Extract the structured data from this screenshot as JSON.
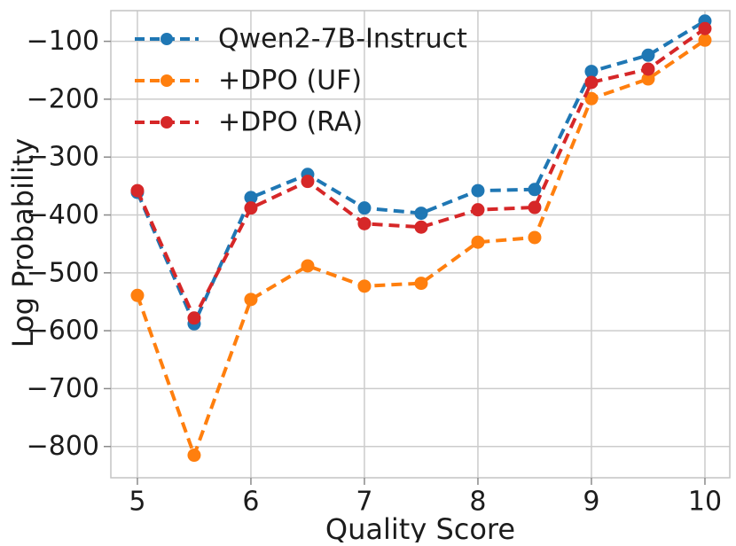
{
  "figure": {
    "xlabel": "Quality Score",
    "ylabel": "Log Probability"
  },
  "chart_data": {
    "type": "line",
    "x": [
      5,
      5.5,
      6,
      6.5,
      7,
      7.5,
      8,
      8.5,
      9,
      9.5,
      10
    ],
    "series": [
      {
        "name": "Qwen2-7B-Instruct",
        "color": "#1f77b4",
        "values": [
          -361,
          -588,
          -370,
          -330,
          -388,
          -397,
          -358,
          -356,
          -152,
          -124,
          -65
        ]
      },
      {
        "name": "+DPO (UF)",
        "color": "#ff7f0e",
        "values": [
          -539,
          -815,
          -546,
          -488,
          -523,
          -518,
          -447,
          -439,
          -199,
          -165,
          -98
        ]
      },
      {
        "name": "+DPO (RA)",
        "color": "#d62728",
        "values": [
          -358,
          -578,
          -388,
          -342,
          -415,
          -421,
          -391,
          -387,
          -171,
          -148,
          -78
        ]
      }
    ],
    "title": "",
    "xlabel": "Quality Score",
    "ylabel": "Log Probability",
    "x_ticks": [
      5,
      6,
      7,
      8,
      9,
      10
    ],
    "y_ticks": [
      -100,
      -200,
      -300,
      -400,
      -500,
      -600,
      -700,
      -800
    ],
    "xlim": [
      4.766,
      10.219
    ],
    "ylim": [
      -854,
      -47
    ],
    "grid": true,
    "grid_color": "#cccccc",
    "legend_position": "upper left",
    "legend_frame": false,
    "line_style": "dashed",
    "marker": "circle"
  }
}
